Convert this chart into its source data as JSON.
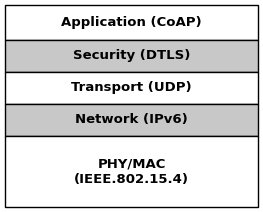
{
  "layers": [
    {
      "label": "Application (CoAP)",
      "bg": "#ffffff",
      "two_line": false
    },
    {
      "label": "Security (DTLS)",
      "bg": "#c8c8c8",
      "two_line": false
    },
    {
      "label": "Transport (UDP)",
      "bg": "#ffffff",
      "two_line": false
    },
    {
      "label": "Network (IPv6)",
      "bg": "#c8c8c8",
      "two_line": false
    },
    {
      "label": "PHY/MAC\n(IEEE.802.15.4)",
      "bg": "#ffffff",
      "two_line": true
    }
  ],
  "border_color": "#000000",
  "text_color": "#000000",
  "font_size": 9.5,
  "font_weight": "bold",
  "line_lw": 1.0,
  "fig_width": 2.63,
  "fig_height": 2.12
}
